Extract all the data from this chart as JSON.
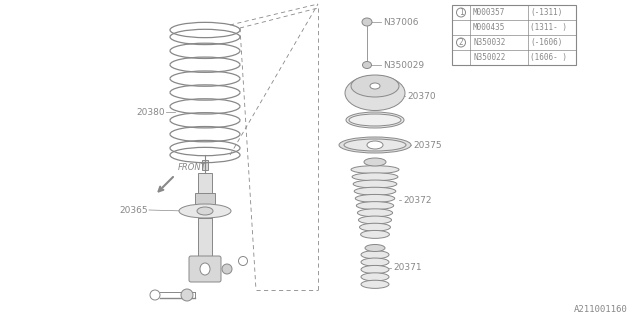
{
  "bg_color": "#ffffff",
  "line_color": "#888888",
  "watermark": "A211001160",
  "legend_entries": [
    {
      "circle": "1",
      "col1": "M000357",
      "col2": "(-1311)"
    },
    {
      "circle": "",
      "col1": "M000435",
      "col2": "(1311- )"
    },
    {
      "circle": "2",
      "col1": "N350032",
      "col2": "(-1606)"
    },
    {
      "circle": "",
      "col1": "N350022",
      "col2": "(1606- )"
    }
  ],
  "fig_width": 6.4,
  "fig_height": 3.2,
  "dpi": 100
}
